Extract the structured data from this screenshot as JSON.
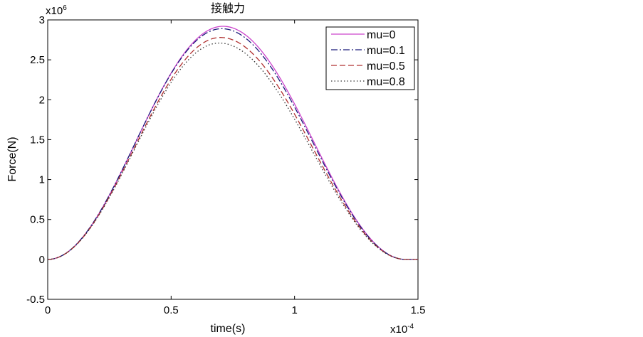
{
  "chart_data": {
    "type": "line",
    "title": "接触力",
    "xlabel": "time(s)",
    "ylabel": "Force(N)",
    "x_multiplier": "x10",
    "x_multiplier_exp": "-4",
    "y_multiplier": "x10",
    "y_multiplier_exp": "6",
    "xlim": [
      0,
      1.5
    ],
    "ylim": [
      -0.5,
      3
    ],
    "x_ticks": [
      "0",
      "0.5",
      "1",
      "1.5"
    ],
    "y_ticks": [
      "-0.5",
      "0",
      "0.5",
      "1",
      "1.5",
      "2",
      "2.5",
      "3"
    ],
    "grid": false,
    "legend_position": "top-right",
    "contact_start": 0,
    "contact_end": 1.45,
    "series": [
      {
        "name": "mu=0",
        "color": "#cc44cc",
        "dash": "solid",
        "peak_time": 0.71,
        "peak_value": 2.92
      },
      {
        "name": "mu=0.1",
        "color": "#1a1a7a",
        "dash": "dashdot",
        "peak_time": 0.705,
        "peak_value": 2.89
      },
      {
        "name": "mu=0.5",
        "color": "#b03030",
        "dash": "dashed",
        "peak_time": 0.7,
        "peak_value": 2.78
      },
      {
        "name": "mu=0.8",
        "color": "#333333",
        "dash": "dotted",
        "peak_time": 0.695,
        "peak_value": 2.71
      }
    ]
  }
}
